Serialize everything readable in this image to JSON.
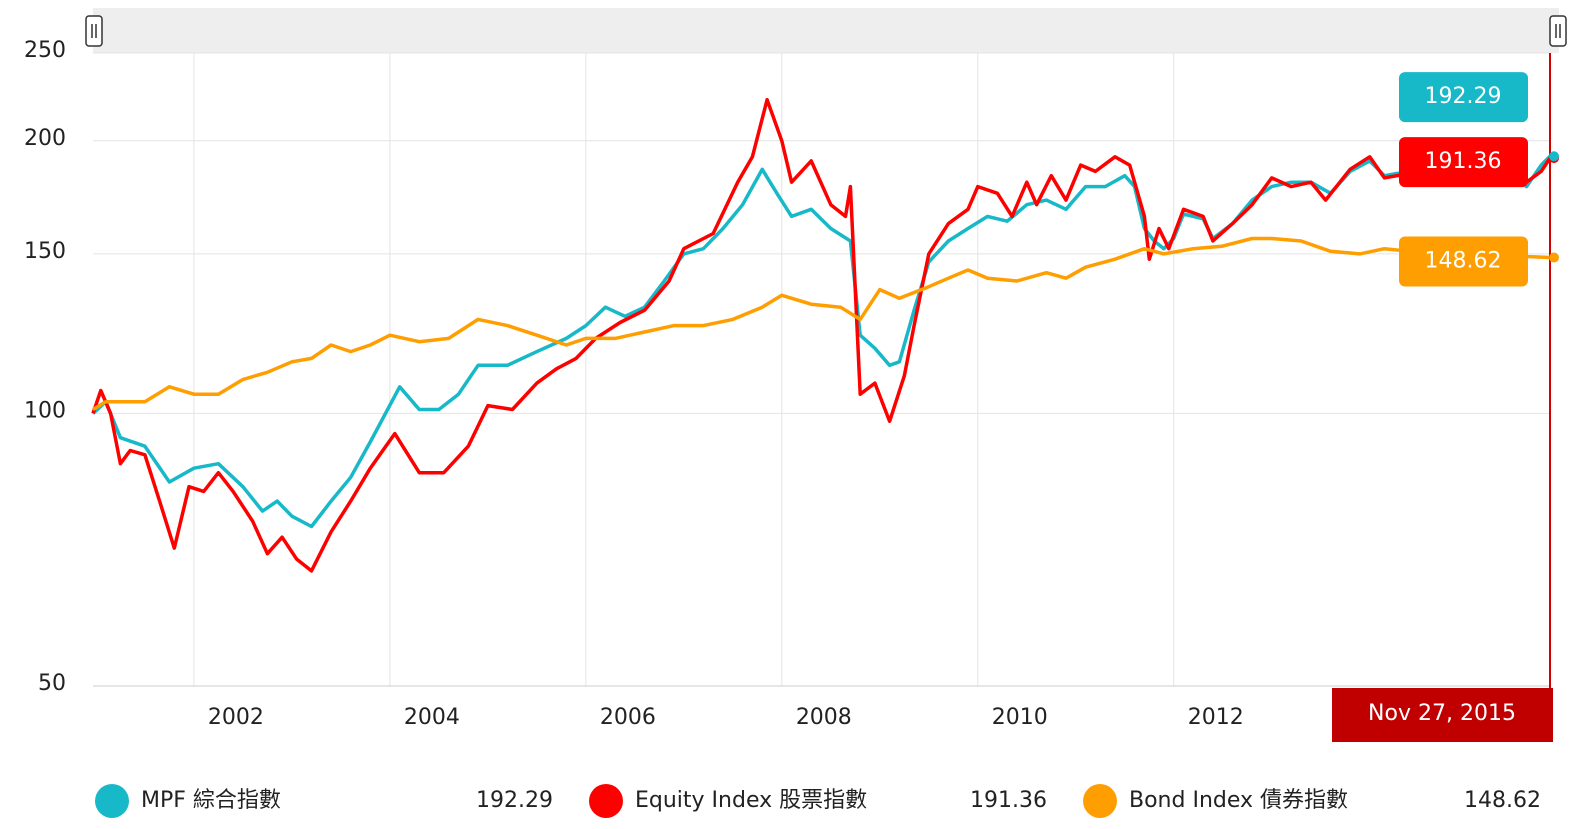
{
  "chart_data": {
    "type": "line",
    "yscale": "log",
    "grid": true,
    "ylim": [
      50,
      250
    ],
    "yticks": [
      50,
      100,
      150,
      200,
      250
    ],
    "xlim": [
      2000.97,
      2015.84
    ],
    "xticks": [
      2002,
      2004,
      2006,
      2008,
      2010,
      2012
    ],
    "annotation": "Nov 27, 2015",
    "series": [
      {
        "name": "MPF 綜合指數",
        "color": "#17b8c8",
        "x": [
          2000.97,
          2001.1,
          2001.25,
          2001.5,
          2001.75,
          2002.0,
          2002.25,
          2002.5,
          2002.7,
          2002.85,
          2003.0,
          2003.2,
          2003.4,
          2003.6,
          2003.8,
          2004.1,
          2004.3,
          2004.5,
          2004.7,
          2004.9,
          2005.2,
          2005.5,
          2005.8,
          2006.0,
          2006.2,
          2006.4,
          2006.6,
          2006.8,
          2007.0,
          2007.2,
          2007.4,
          2007.6,
          2007.8,
          2007.95,
          2008.1,
          2008.3,
          2008.5,
          2008.7,
          2008.8,
          2008.95,
          2009.1,
          2009.2,
          2009.35,
          2009.5,
          2009.7,
          2009.9,
          2010.1,
          2010.3,
          2010.5,
          2010.7,
          2010.9,
          2011.1,
          2011.3,
          2011.5,
          2011.6,
          2011.7,
          2011.8,
          2011.9,
          2012.0,
          2012.1,
          2012.3,
          2012.4,
          2012.6,
          2012.8,
          2013.0,
          2013.2,
          2013.4,
          2013.6,
          2013.8,
          2014.0,
          2014.15,
          2014.4,
          2014.7,
          2015.0,
          2015.3,
          2015.6,
          2015.75,
          2015.84
        ],
        "values": [
          100,
          103,
          94,
          92,
          84,
          87,
          88,
          83,
          78,
          80,
          77,
          75,
          80,
          85,
          93,
          107,
          101,
          101,
          105,
          113,
          113,
          117,
          121,
          125,
          131,
          128,
          131,
          140,
          150,
          152,
          160,
          170,
          186,
          175,
          165,
          168,
          160,
          155,
          122,
          118,
          113,
          114,
          130,
          147,
          155,
          160,
          165,
          163,
          170,
          172,
          168,
          178,
          178,
          183,
          178,
          160,
          155,
          152,
          156,
          166,
          164,
          156,
          162,
          172,
          178,
          180,
          180,
          175,
          185,
          190,
          183,
          185,
          188,
          192,
          190,
          178,
          188,
          192.29
        ]
      },
      {
        "name": "Equity Index 股票指數",
        "color": "#ff0000",
        "x": [
          2000.97,
          2001.05,
          2001.15,
          2001.25,
          2001.35,
          2001.5,
          2001.65,
          2001.8,
          2001.95,
          2002.1,
          2002.25,
          2002.4,
          2002.6,
          2002.75,
          2002.9,
          2003.05,
          2003.2,
          2003.4,
          2003.6,
          2003.8,
          2004.05,
          2004.3,
          2004.55,
          2004.8,
          2005.0,
          2005.25,
          2005.5,
          2005.7,
          2005.9,
          2006.1,
          2006.35,
          2006.6,
          2006.85,
          2007.0,
          2007.3,
          2007.55,
          2007.7,
          2007.85,
          2008.0,
          2008.1,
          2008.3,
          2008.5,
          2008.65,
          2008.7,
          2008.8,
          2008.95,
          2009.1,
          2009.25,
          2009.35,
          2009.5,
          2009.7,
          2009.9,
          2010.0,
          2010.2,
          2010.35,
          2010.5,
          2010.6,
          2010.75,
          2010.9,
          2011.05,
          2011.2,
          2011.4,
          2011.55,
          2011.7,
          2011.75,
          2011.85,
          2011.95,
          2012.1,
          2012.3,
          2012.4,
          2012.6,
          2012.8,
          2013.0,
          2013.2,
          2013.4,
          2013.55,
          2013.8,
          2014.0,
          2014.15,
          2014.4,
          2014.7,
          2015.0,
          2015.3,
          2015.6,
          2015.75,
          2015.84
        ],
        "values": [
          100,
          106,
          100,
          88,
          91,
          90,
          80,
          71,
          83,
          82,
          86,
          82,
          76,
          70,
          73,
          69,
          67,
          74,
          80,
          87,
          95,
          86,
          86,
          92,
          102,
          101,
          108,
          112,
          115,
          121,
          126,
          130,
          140,
          152,
          158,
          180,
          192,
          222,
          200,
          180,
          190,
          170,
          165,
          178,
          105,
          108,
          98,
          110,
          125,
          150,
          162,
          168,
          178,
          175,
          165,
          180,
          170,
          183,
          172,
          188,
          185,
          192,
          188,
          165,
          148,
          160,
          152,
          168,
          165,
          155,
          162,
          170,
          182,
          178,
          180,
          172,
          186,
          192,
          182,
          184,
          190,
          195,
          196,
          180,
          185,
          191.36
        ]
      },
      {
        "name": "Bond Index 債券指數",
        "color": "#ff9e00",
        "x": [
          2000.97,
          2001.1,
          2001.5,
          2001.75,
          2002.0,
          2002.25,
          2002.5,
          2002.75,
          2003.0,
          2003.2,
          2003.4,
          2003.6,
          2003.8,
          2004.0,
          2004.3,
          2004.6,
          2004.9,
          2005.2,
          2005.5,
          2005.8,
          2006.0,
          2006.3,
          2006.6,
          2006.9,
          2007.2,
          2007.5,
          2007.8,
          2008.0,
          2008.3,
          2008.6,
          2008.8,
          2009.0,
          2009.2,
          2009.5,
          2009.7,
          2009.9,
          2010.1,
          2010.4,
          2010.7,
          2010.9,
          2011.1,
          2011.4,
          2011.7,
          2011.9,
          2012.2,
          2012.5,
          2012.8,
          2013.0,
          2013.3,
          2013.6,
          2013.9,
          2014.15,
          2014.4,
          2014.8,
          2015.2,
          2015.6,
          2015.84
        ],
        "values": [
          101,
          103,
          103,
          107,
          105,
          105,
          109,
          111,
          114,
          115,
          119,
          117,
          119,
          122,
          120,
          121,
          127,
          125,
          122,
          119,
          121,
          121,
          123,
          125,
          125,
          127,
          131,
          135,
          132,
          131,
          127,
          137,
          134,
          138,
          141,
          144,
          141,
          140,
          143,
          141,
          145,
          148,
          152,
          150,
          152,
          153,
          156,
          156,
          155,
          151,
          150,
          152,
          151,
          150,
          150,
          149,
          148.62
        ]
      }
    ]
  }
}
